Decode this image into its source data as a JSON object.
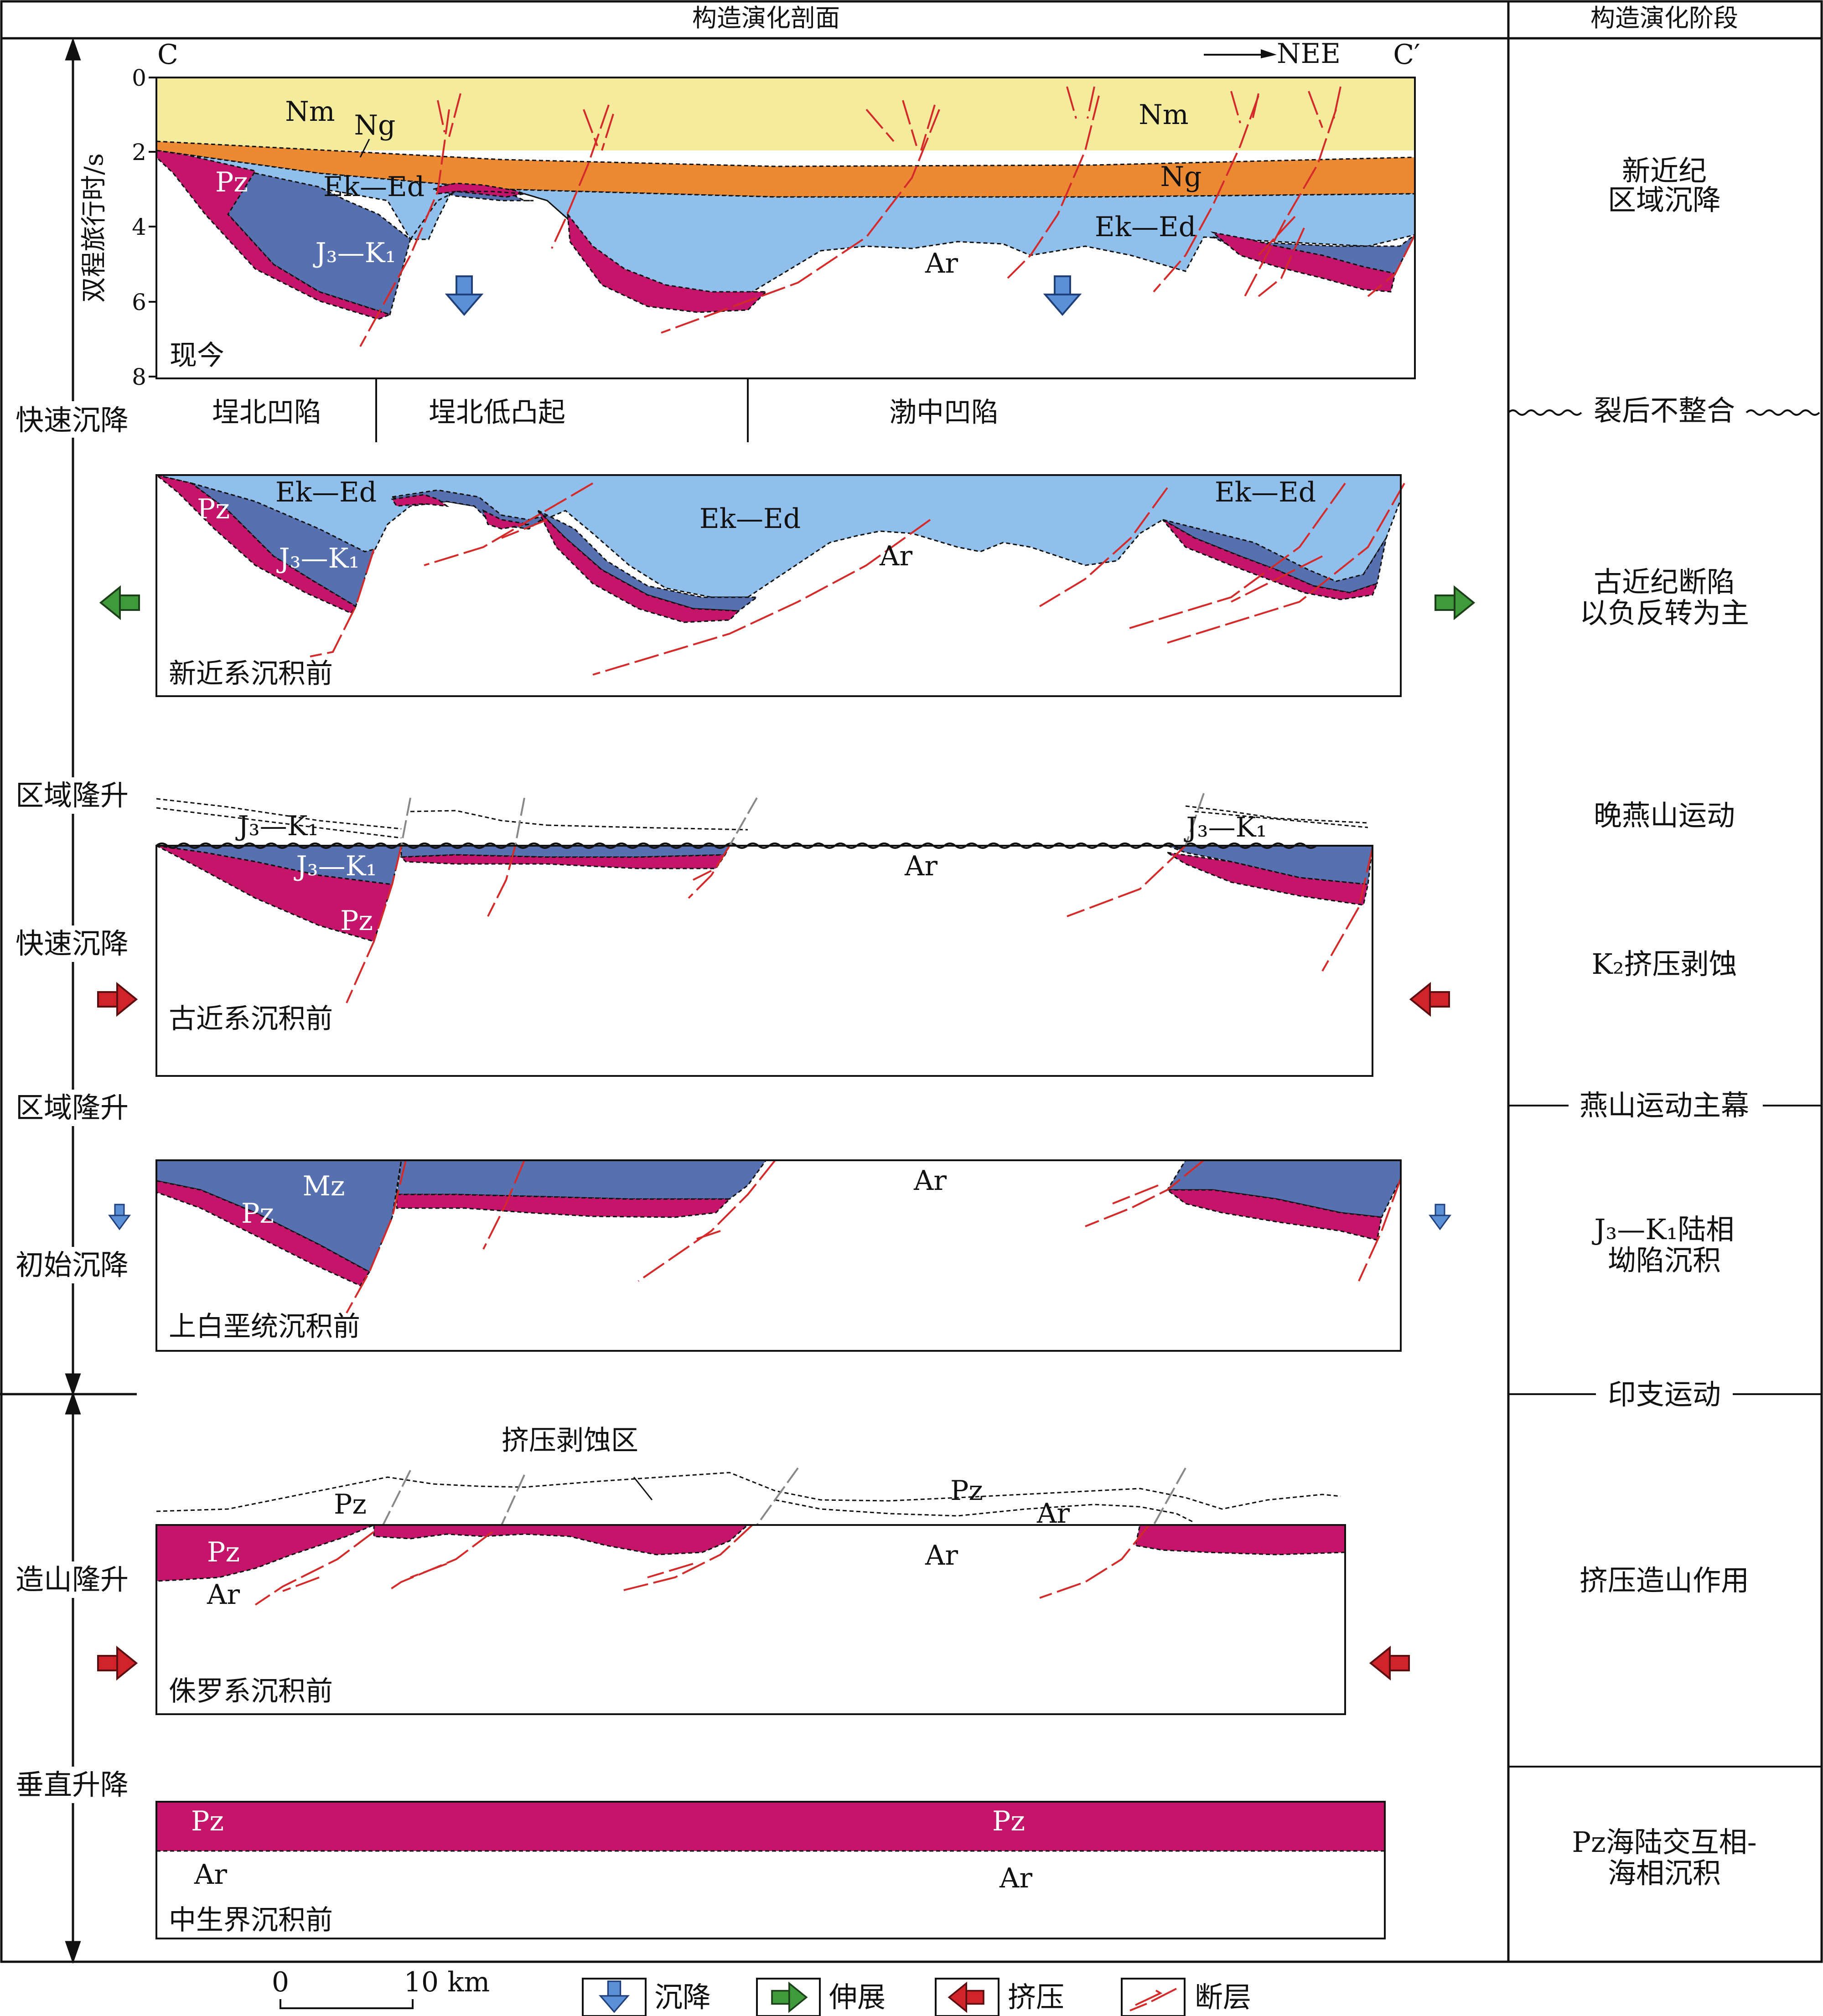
{
  "header": {
    "left_title": "构造演化剖面",
    "right_title": "构造演化阶段"
  },
  "section": {
    "start_label": "C",
    "end_label": "C′",
    "direction_label": "NEE",
    "y_axis_label": "双程旅行时/s",
    "y_ticks": [
      "0",
      "2",
      "4",
      "6",
      "8"
    ]
  },
  "left_events": [
    "快速沉降",
    "区域隆升",
    "快速沉降",
    "区域隆升",
    "初始沉降",
    "造山隆升",
    "垂直升降"
  ],
  "stages": [
    {
      "line1": "新近纪",
      "line2": "区域沉降"
    },
    {
      "line1": "裂后不整合",
      "line2": ""
    },
    {
      "line1": "古近纪断陷",
      "line2": "以负反转为主"
    },
    {
      "line1": "晚燕山运动",
      "line2": ""
    },
    {
      "line1": "K₂挤压剥蚀",
      "line2": ""
    },
    {
      "line1": "燕山运动主幕",
      "line2": ""
    },
    {
      "line1": "J₃—K₁陆相",
      "line2": "坳陷沉积"
    },
    {
      "line1": "印支运动",
      "line2": ""
    },
    {
      "line1": "挤压造山作用",
      "line2": ""
    },
    {
      "line1": "Pz海陆交互相-",
      "line2": "海相沉积"
    }
  ],
  "zones": [
    "埕北凹陷",
    "埕北低凸起",
    "渤中凹陷"
  ],
  "panels": [
    {
      "name": "现今",
      "labels": {
        "nm1": "Nm",
        "nm2": "Nm",
        "ng1": "Ng",
        "ng2": "Ng",
        "pz": "Pz",
        "ekd1": "Ek—Ed",
        "ekd2": "Ek—Ed",
        "jk": "J₃—K₁",
        "ar": "Ar"
      }
    },
    {
      "name": "新近系沉积前",
      "labels": {
        "ekd1": "Ek—Ed",
        "ekd2": "Ek—Ed",
        "ekd3": "Ek—Ed",
        "pz": "Pz",
        "jk": "J₃—K₁",
        "ar": "Ar"
      }
    },
    {
      "name": "古近系沉积前",
      "labels": {
        "jk_eroded1": "J₃—K₁",
        "jk_eroded2": "J₃—K₁",
        "jk": "J₃—K₁",
        "pz": "Pz",
        "ar": "Ar"
      }
    },
    {
      "name": "上白垩统沉积前",
      "labels": {
        "mz": "Mz",
        "pz": "Pz",
        "ar": "Ar"
      }
    },
    {
      "name": "侏罗系沉积前",
      "labels": {
        "zone": "挤压剥蚀区",
        "pz_eroded1": "Pz",
        "pz_eroded2": "Pz",
        "ar_eroded": "Ar",
        "pz": "Pz",
        "ar1": "Ar",
        "ar2": "Ar"
      }
    },
    {
      "name": "中生界沉积前",
      "labels": {
        "pz1": "Pz",
        "pz2": "Pz",
        "ar1": "Ar",
        "ar2": "Ar"
      }
    }
  ],
  "scale": {
    "start": "0",
    "end": "10 km"
  },
  "legend": [
    {
      "icon": "subsidence-arrow-icon",
      "label": "沉降"
    },
    {
      "icon": "extension-arrow-icon",
      "label": "伸展"
    },
    {
      "icon": "compression-arrow-icon",
      "label": "挤压"
    },
    {
      "icon": "fault-icon",
      "label": "断层"
    }
  ],
  "colors": {
    "Nm": "#f4ec9c",
    "Ng": "#ec8a34",
    "Ek-Ed": "#8fbfea",
    "J3-K1 / Mz": "#5670b0",
    "Pz": "#c4156a",
    "fault": "#d42a2a",
    "subsidence arrow": "#5b8fd6",
    "extension arrow": "#3f9a3c",
    "compression arrow": "#d0232a"
  }
}
